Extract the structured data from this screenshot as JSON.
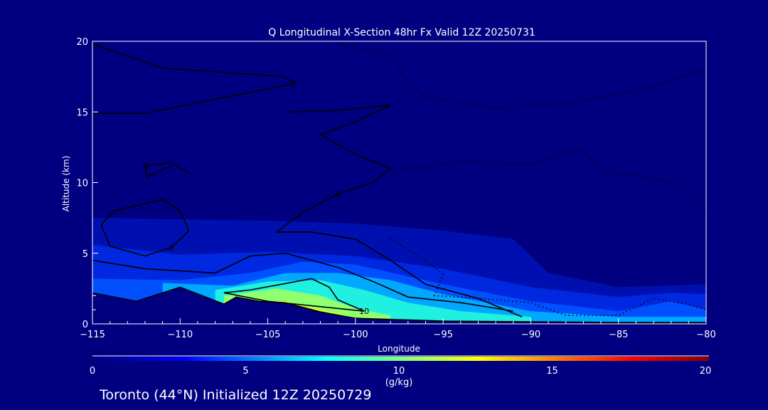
{
  "chart_data": {
    "type": "heatmap",
    "title": "Q Longitudinal X-Section 48hr  Fx Valid 12Z 20250731",
    "xlabel": "Longitude",
    "ylabel": "Altitude (km)",
    "xlim": [
      -115,
      -80
    ],
    "ylim": [
      0,
      20
    ],
    "xticks": [
      -115,
      -110,
      -105,
      -100,
      -95,
      -90,
      -85,
      -80
    ],
    "xtick_labels": [
      "−115",
      "−110",
      "−105",
      "−100",
      "−95",
      "−90",
      "−85",
      "−80"
    ],
    "yticks": [
      0,
      5,
      10,
      15,
      20
    ],
    "ytick_labels": [
      "0",
      "5",
      "10",
      "15",
      "20"
    ],
    "colorbar": {
      "range": [
        0,
        20
      ],
      "ticks": [
        0,
        5,
        10,
        15,
        20
      ],
      "tick_labels": [
        "0",
        "5",
        "10",
        "15",
        "20"
      ],
      "units": "(g/kg)",
      "stops": [
        [
          0,
          "#000080"
        ],
        [
          3,
          "#0000ff"
        ],
        [
          7.5,
          "#00ffff"
        ],
        [
          12.5,
          "#ffff00"
        ],
        [
          17.5,
          "#ff0000"
        ],
        [
          20,
          "#800000"
        ]
      ]
    },
    "field_levels": [
      {
        "q": 1,
        "color": "#0010b0",
        "top": [
          [
            -115,
            7.5
          ],
          [
            -110,
            7.4
          ],
          [
            -105,
            7.3
          ],
          [
            -100,
            7.1
          ],
          [
            -95,
            6.6
          ],
          [
            -91,
            6.0
          ],
          [
            -89,
            3.6
          ],
          [
            -85,
            2.6
          ],
          [
            -80,
            2.8
          ]
        ]
      },
      {
        "q": 2.5,
        "color": "#0028e0",
        "top": [
          [
            -115,
            5.6
          ],
          [
            -110,
            4.9
          ],
          [
            -105,
            5.1
          ],
          [
            -100,
            4.8
          ],
          [
            -95,
            3.9
          ],
          [
            -90,
            2.6
          ],
          [
            -85,
            1.9
          ],
          [
            -82,
            2.2
          ],
          [
            -80,
            2.1
          ]
        ]
      },
      {
        "q": 4,
        "color": "#0050ff",
        "top": [
          [
            -115,
            3.2
          ],
          [
            -110,
            3.1
          ],
          [
            -106,
            3.6
          ],
          [
            -103,
            4.4
          ],
          [
            -100,
            4.2
          ],
          [
            -95,
            2.8
          ],
          [
            -90,
            1.6
          ],
          [
            -85,
            0.9
          ],
          [
            -82,
            1.6
          ],
          [
            -80,
            1.0
          ]
        ]
      },
      {
        "q": 6,
        "color": "#00a8ff",
        "top": [
          [
            -111,
            2.9
          ],
          [
            -107,
            2.7
          ],
          [
            -104,
            3.6
          ],
          [
            -101,
            3.6
          ],
          [
            -98,
            3.1
          ],
          [
            -95,
            2.1
          ],
          [
            -90,
            0.9
          ],
          [
            -85,
            0.5
          ],
          [
            -80,
            0.5
          ]
        ]
      },
      {
        "q": 8,
        "color": "#20f0e0",
        "top": [
          [
            -108,
            2.4
          ],
          [
            -105,
            3.0
          ],
          [
            -102,
            3.1
          ],
          [
            -99.5,
            2.4
          ],
          [
            -97,
            1.5
          ],
          [
            -94,
            0.9
          ],
          [
            -90,
            0.5
          ]
        ]
      },
      {
        "q": 10,
        "color": "#90ff70",
        "top": [
          [
            -107.5,
            2.0
          ],
          [
            -104.5,
            2.5
          ],
          [
            -102,
            2.0
          ],
          [
            -100,
            1.1
          ],
          [
            -98,
            0.6
          ]
        ]
      },
      {
        "q": 12,
        "color": "#e0ff20",
        "top": [
          [
            -107,
            1.6
          ],
          [
            -104,
            1.6
          ],
          [
            -102,
            1.0
          ],
          [
            -100.5,
            0.6
          ]
        ]
      }
    ],
    "terrain": [
      [
        -115,
        2.2
      ],
      [
        -112.5,
        1.6
      ],
      [
        -110,
        2.6
      ],
      [
        -107.5,
        1.4
      ],
      [
        -106.8,
        1.9
      ],
      [
        -105.5,
        1.6
      ],
      [
        -104,
        1.5
      ],
      [
        -102,
        0.85
      ],
      [
        -100,
        0.4
      ],
      [
        -95,
        0.2
      ],
      [
        -90,
        0.15
      ],
      [
        -85,
        0.1
      ],
      [
        -80,
        0.1
      ]
    ],
    "contours": [
      {
        "style": "solid",
        "label": "0",
        "points": [
          [
            -115,
            19.8
          ],
          [
            -111,
            18.1
          ],
          [
            -104,
            17.5
          ],
          [
            -103.5,
            17.0
          ],
          [
            -108.8,
            15.7
          ],
          [
            -112,
            14.9
          ],
          [
            -115,
            14.9
          ]
        ]
      },
      {
        "style": "solid",
        "label": "0",
        "points": [
          [
            -109.5,
            10.7
          ],
          [
            -110.5,
            11.4
          ],
          [
            -112,
            11.2
          ],
          [
            -111.9,
            10.4
          ],
          [
            -110.5,
            11.2
          ]
        ]
      },
      {
        "style": "solid",
        "label": "0",
        "points": [
          [
            -103.8,
            15.0
          ],
          [
            -101,
            15.1
          ],
          [
            -98,
            15.5
          ],
          [
            -100,
            14.3
          ],
          [
            -102,
            13.4
          ],
          [
            -100,
            12.0
          ],
          [
            -98,
            11.0
          ],
          [
            -99,
            10.0
          ],
          [
            -101,
            9.2
          ],
          [
            -103,
            7.9
          ],
          [
            -104.5,
            6.5
          ],
          [
            -102.5,
            6.5
          ],
          [
            -100,
            6.0
          ],
          [
            -98,
            4.5
          ],
          [
            -96,
            2.8
          ],
          [
            -93,
            1.8
          ],
          [
            -90.5,
            0.5
          ]
        ]
      },
      {
        "style": "solid",
        "label": "0",
        "points": [
          [
            -113.8,
            8.0
          ],
          [
            -111,
            8.8
          ],
          [
            -110,
            8.0
          ],
          [
            -109.5,
            6.6
          ],
          [
            -110.5,
            5.4
          ],
          [
            -112,
            4.8
          ],
          [
            -114,
            5.5
          ],
          [
            -114.5,
            7.0
          ],
          [
            -113.8,
            8.0
          ]
        ]
      },
      {
        "style": "solid",
        "label": "10",
        "points": [
          [
            -106,
            2.4
          ],
          [
            -102.5,
            3.2
          ],
          [
            -101.5,
            2.6
          ],
          [
            -101,
            1.7
          ],
          [
            -99.5,
            0.9
          ],
          [
            -105,
            1.6
          ],
          [
            -107.5,
            2.2
          ],
          [
            -106,
            2.4
          ]
        ]
      },
      {
        "style": "solid",
        "label": "",
        "points": [
          [
            -115,
            4.5
          ],
          [
            -112,
            3.9
          ],
          [
            -108,
            3.6
          ],
          [
            -106,
            4.8
          ],
          [
            -104,
            5.0
          ],
          [
            -101,
            4.0
          ],
          [
            -99,
            3.0
          ],
          [
            -97,
            1.9
          ],
          [
            -94,
            1.5
          ],
          [
            -91,
            0.9
          ]
        ]
      },
      {
        "style": "dotted",
        "label": "",
        "points": [
          [
            -101,
            19.8
          ],
          [
            -98,
            19.0
          ],
          [
            -97,
            17.0
          ],
          [
            -96,
            16.0
          ],
          [
            -92,
            15.3
          ],
          [
            -88,
            15.6
          ],
          [
            -84,
            16.5
          ],
          [
            -80,
            18.0
          ]
        ]
      },
      {
        "style": "dotted",
        "label": "",
        "points": [
          [
            -98,
            10.8
          ],
          [
            -94,
            11.5
          ],
          [
            -90,
            11.3
          ],
          [
            -87,
            12.4
          ],
          [
            -86,
            10.7
          ],
          [
            -84,
            10.5
          ],
          [
            -82,
            10.0
          ],
          [
            -80,
            8.0
          ]
        ]
      },
      {
        "style": "dotted",
        "label": "",
        "points": [
          [
            -98,
            6.0
          ],
          [
            -96,
            4.5
          ],
          [
            -95,
            3.5
          ],
          [
            -95.5,
            2.0
          ],
          [
            -93,
            1.8
          ],
          [
            -90,
            1.5
          ],
          [
            -88,
            0.6
          ],
          [
            -85,
            0.6
          ],
          [
            -83,
            1.8
          ],
          [
            -81,
            1.4
          ],
          [
            -80,
            1.0
          ]
        ]
      }
    ]
  },
  "footer": {
    "text": "Toronto (44°N) Initialized 12Z 20250729"
  }
}
